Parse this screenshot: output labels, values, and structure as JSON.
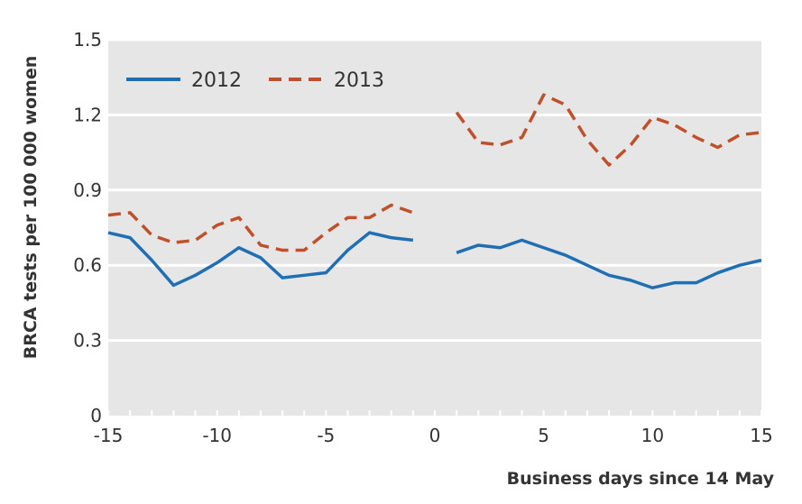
{
  "chart_data": {
    "type": "line",
    "xlabel": "Business days since 14 May",
    "ylabel": "BRCA tests per 100 000 women",
    "xlim": [
      -15,
      15
    ],
    "ylim": [
      0,
      1.5
    ],
    "x_ticks": [
      -15,
      -10,
      -5,
      0,
      5,
      10,
      15
    ],
    "x_tick_labels": [
      "-15",
      "-10",
      "-5",
      "0",
      "5",
      "10",
      "15"
    ],
    "y_ticks": [
      0,
      0.3,
      0.6,
      0.9,
      1.2,
      1.5
    ],
    "y_tick_labels": [
      "0",
      "0.3",
      "0.6",
      "0.9",
      "1.2",
      "1.5"
    ],
    "grid": "horizontal",
    "legend_position": "top-left",
    "background_color": "#e6e6e6",
    "series": [
      {
        "name": "2012",
        "color": "#1f6fb2",
        "style": "solid",
        "segments": [
          {
            "x": [
              -15,
              -14,
              -13,
              -12,
              -11,
              -10,
              -9,
              -8,
              -7,
              -6,
              -5,
              -4,
              -3,
              -2,
              -1
            ],
            "y": [
              0.73,
              0.71,
              0.62,
              0.52,
              0.56,
              0.61,
              0.67,
              0.63,
              0.55,
              0.56,
              0.57,
              0.66,
              0.73,
              0.71,
              0.7
            ]
          },
          {
            "x": [
              1,
              2,
              3,
              4,
              5,
              6,
              7,
              8,
              9,
              10,
              11,
              12,
              13,
              14,
              15
            ],
            "y": [
              0.65,
              0.68,
              0.67,
              0.7,
              0.67,
              0.64,
              0.6,
              0.56,
              0.54,
              0.51,
              0.53,
              0.53,
              0.57,
              0.6,
              0.62
            ]
          }
        ]
      },
      {
        "name": "2013",
        "color": "#c0502a",
        "style": "dashed",
        "segments": [
          {
            "x": [
              -15,
              -14,
              -13,
              -12,
              -11,
              -10,
              -9,
              -8,
              -7,
              -6,
              -5,
              -4,
              -3,
              -2,
              -1
            ],
            "y": [
              0.8,
              0.81,
              0.72,
              0.69,
              0.7,
              0.76,
              0.79,
              0.68,
              0.66,
              0.66,
              0.73,
              0.79,
              0.79,
              0.84,
              0.81
            ]
          },
          {
            "x": [
              1,
              2,
              3,
              4,
              5,
              6,
              7,
              8,
              9,
              10,
              11,
              12,
              13,
              14,
              15
            ],
            "y": [
              1.21,
              1.09,
              1.08,
              1.11,
              1.28,
              1.24,
              1.1,
              1.0,
              1.08,
              1.19,
              1.16,
              1.11,
              1.07,
              1.12,
              1.13
            ]
          }
        ]
      }
    ]
  }
}
